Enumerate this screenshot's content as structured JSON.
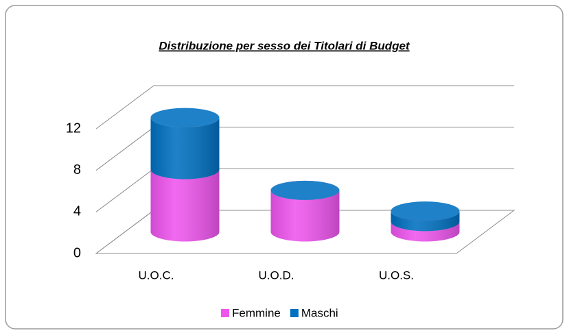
{
  "chart_data": {
    "type": "bar3d",
    "title": "Distribuzione per sesso dei Titolari di Budget",
    "categories": [
      "U.O.C.",
      "U.O.D.",
      "U.O.S."
    ],
    "series": [
      {
        "name": "Femmine",
        "color": "#ee55ee",
        "values": [
          6,
          4,
          1
        ]
      },
      {
        "name": "Maschi",
        "color": "#0070c0",
        "values": [
          5,
          0,
          1
        ]
      }
    ],
    "ylim": [
      0,
      12
    ],
    "yticks": [
      0,
      4,
      8,
      12
    ],
    "grid": true,
    "stacked": true,
    "legend": "bottom"
  }
}
